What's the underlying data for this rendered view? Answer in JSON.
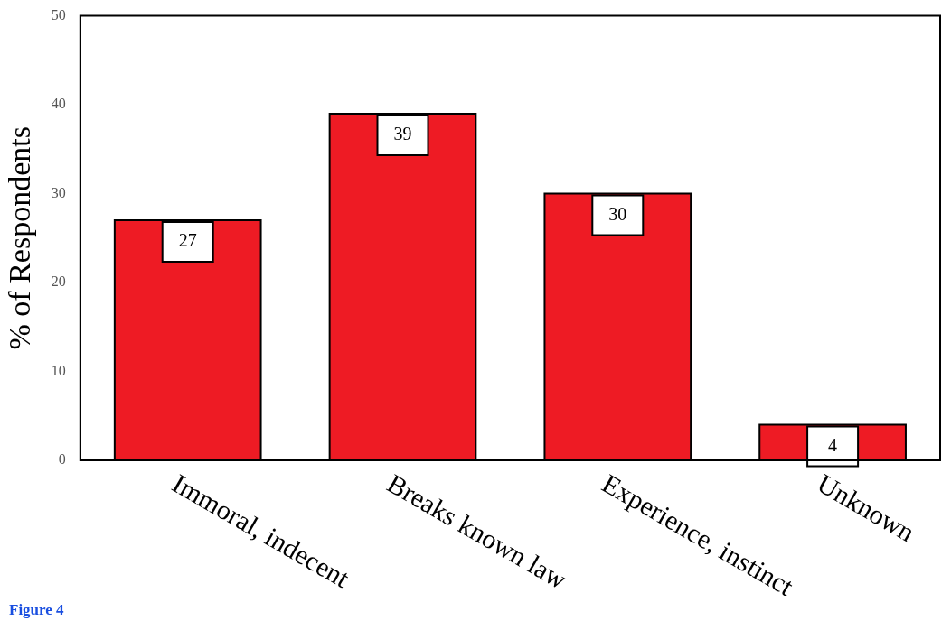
{
  "chart_data": {
    "type": "bar",
    "ylabel": "% of Respondents",
    "categories": [
      "Immoral, indecent",
      "Breaks known law",
      "Experience, instinct",
      "Unknown"
    ],
    "values": [
      27,
      39,
      30,
      4
    ],
    "color": "#ee1b24",
    "ylim": [
      0,
      50
    ],
    "yticks": [
      0,
      10,
      20,
      30,
      40,
      50
    ],
    "grid": false,
    "legend": false,
    "data_labels": true,
    "annotations": [
      "Figure 4"
    ]
  }
}
